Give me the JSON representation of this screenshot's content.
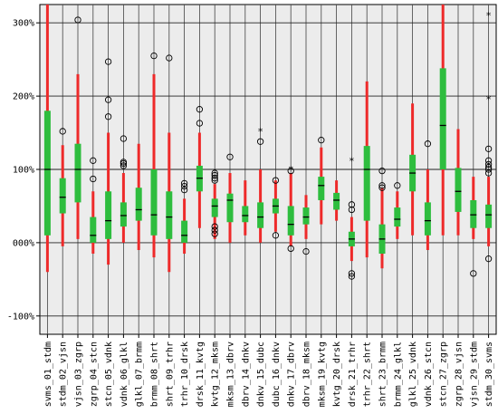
{
  "chart_data": {
    "type": "boxplot",
    "title": "",
    "xlabel": "",
    "ylabel": "",
    "ylim": [
      -125,
      325
    ],
    "y_ticks": [
      {
        "value": -100,
        "label": "-100%"
      },
      {
        "value": 0,
        "label": "000%"
      },
      {
        "value": 100,
        "label": "100%"
      },
      {
        "value": 200,
        "label": "200%"
      },
      {
        "value": 300,
        "label": "300%"
      }
    ],
    "grid": true,
    "colors": {
      "whisker": "#ee2a2a",
      "box": "#2ebd3e",
      "median": "#000000",
      "panel": "#ececec",
      "outlier": "#000000"
    },
    "categories": [
      "svms_01_stdm",
      "stdm_02_vjsn",
      "vjsn_03_zgrp",
      "zgrp_04_stcn",
      "stcn_05_vdnk",
      "vdnk_06_glkl",
      "glkl_07_brmm",
      "brmm_08_shrt",
      "shrt_09_trhr",
      "trhr_10_drsk",
      "drsk_11_kvtg",
      "kvtg_12_mksm",
      "mksm_13_dbrv",
      "dbrv_14_dnkv",
      "dnkv_15_dubc",
      "dubc_16_dnkv",
      "dnkv_17_dbrv",
      "dbrv_18_mksm",
      "mksm_19_kvtg",
      "kvtg_20_drsk",
      "drsk_21_trhr",
      "trhr_22_shrt",
      "shrt_23_brmm",
      "brmm_24_glkl",
      "glkl_25_vdnk",
      "vdnk_26_stcn",
      "stcn_27_zgrp",
      "zgrp_28_vjsn",
      "vjsn_29_stdm",
      "stdm_30_svms"
    ],
    "boxes": [
      {
        "whislo": -40,
        "q1": 10,
        "med": 100,
        "q3": 180,
        "whishi": 325,
        "outliers": []
      },
      {
        "whislo": -5,
        "q1": 40,
        "med": 62,
        "q3": 88,
        "whishi": 133,
        "outliers": [
          152
        ]
      },
      {
        "whislo": 5,
        "q1": 55,
        "med": 100,
        "q3": 135,
        "whishi": 230,
        "outliers": [
          304
        ]
      },
      {
        "whislo": -15,
        "q1": 0,
        "med": 10,
        "q3": 35,
        "whishi": 70,
        "outliers": [
          87,
          112
        ]
      },
      {
        "whislo": -30,
        "q1": 5,
        "med": 30,
        "q3": 70,
        "whishi": 150,
        "outliers": [
          172,
          195,
          247
        ]
      },
      {
        "whislo": 0,
        "q1": 22,
        "med": 37,
        "q3": 55,
        "whishi": 95,
        "outliers": [
          105,
          108,
          110,
          142
        ]
      },
      {
        "whislo": -10,
        "q1": 30,
        "med": 45,
        "q3": 75,
        "whishi": 135,
        "outliers": []
      },
      {
        "whislo": -20,
        "q1": 10,
        "med": 38,
        "q3": 100,
        "whishi": 230,
        "outliers": [
          255
        ]
      },
      {
        "whislo": -40,
        "q1": 5,
        "med": 35,
        "q3": 70,
        "whishi": 150,
        "outliers": [
          252
        ]
      },
      {
        "whislo": -15,
        "q1": 0,
        "med": 10,
        "q3": 30,
        "whishi": 60,
        "outliers": [
          72,
          77,
          81
        ]
      },
      {
        "whislo": 20,
        "q1": 70,
        "med": 88,
        "q3": 105,
        "whishi": 150,
        "outliers": [
          163,
          182
        ]
      },
      {
        "whislo": 5,
        "q1": 35,
        "med": 50,
        "q3": 60,
        "whishi": 80,
        "outliers": [
          12,
          17,
          22,
          85,
          88,
          92,
          95
        ]
      },
      {
        "whislo": 0,
        "q1": 28,
        "med": 58,
        "q3": 67,
        "whishi": 95,
        "outliers": [
          117
        ]
      },
      {
        "whislo": 10,
        "q1": 28,
        "med": 37,
        "q3": 50,
        "whishi": 85,
        "outliers": []
      },
      {
        "whislo": 0,
        "q1": 20,
        "med": 35,
        "q3": 55,
        "whishi": 100,
        "outliers": [
          138
        ]
      },
      {
        "whislo": 15,
        "q1": 40,
        "med": 50,
        "q3": 60,
        "whishi": 85,
        "outliers": [
          10,
          85
        ]
      },
      {
        "whislo": -5,
        "q1": 10,
        "med": 25,
        "q3": 50,
        "whishi": 95,
        "outliers": [
          -8,
          98
        ]
      },
      {
        "whislo": 5,
        "q1": 25,
        "med": 35,
        "q3": 48,
        "whishi": 65,
        "outliers": [
          -12
        ]
      },
      {
        "whislo": 25,
        "q1": 58,
        "med": 78,
        "q3": 90,
        "whishi": 130,
        "outliers": [
          140
        ]
      },
      {
        "whislo": 30,
        "q1": 45,
        "med": 58,
        "q3": 68,
        "whishi": 85,
        "outliers": []
      },
      {
        "whislo": -25,
        "q1": -5,
        "med": 5,
        "q3": 15,
        "whishi": 35,
        "outliers": [
          -42,
          -46,
          45,
          52
        ]
      },
      {
        "whislo": -20,
        "q1": 30,
        "med": 100,
        "q3": 132,
        "whishi": 220,
        "outliers": []
      },
      {
        "whislo": -35,
        "q1": -15,
        "med": 5,
        "q3": 25,
        "whishi": 75,
        "outliers": [
          75,
          78,
          98
        ]
      },
      {
        "whislo": 5,
        "q1": 22,
        "med": 32,
        "q3": 48,
        "whishi": 70,
        "outliers": [
          78
        ]
      },
      {
        "whislo": 10,
        "q1": 70,
        "med": 95,
        "q3": 120,
        "whishi": 190,
        "outliers": []
      },
      {
        "whislo": -10,
        "q1": 10,
        "med": 30,
        "q3": 55,
        "whishi": 100,
        "outliers": [
          135
        ]
      },
      {
        "whislo": 10,
        "q1": 100,
        "med": 160,
        "q3": 238,
        "whishi": 325,
        "outliers": []
      },
      {
        "whislo": 10,
        "q1": 42,
        "med": 70,
        "q3": 102,
        "whishi": 155,
        "outliers": []
      },
      {
        "whislo": 5,
        "q1": 20,
        "med": 38,
        "q3": 58,
        "whishi": 90,
        "outliers": [
          -42
        ]
      },
      {
        "whislo": -5,
        "q1": 20,
        "med": 38,
        "q3": 52,
        "whishi": 90,
        "outliers": [
          -22,
          95,
          100,
          103,
          107,
          112,
          128
        ]
      }
    ],
    "star_markers": [
      {
        "category": "dnkv_15_dubc",
        "value": 152
      },
      {
        "category": "dnkv_17_dbrv",
        "value": 100
      },
      {
        "category": "drsk_21_trhr",
        "value": 112
      },
      {
        "category": "stdm_30_svms",
        "value": 310
      },
      {
        "category": "stdm_30_svms",
        "value": 196
      }
    ]
  }
}
